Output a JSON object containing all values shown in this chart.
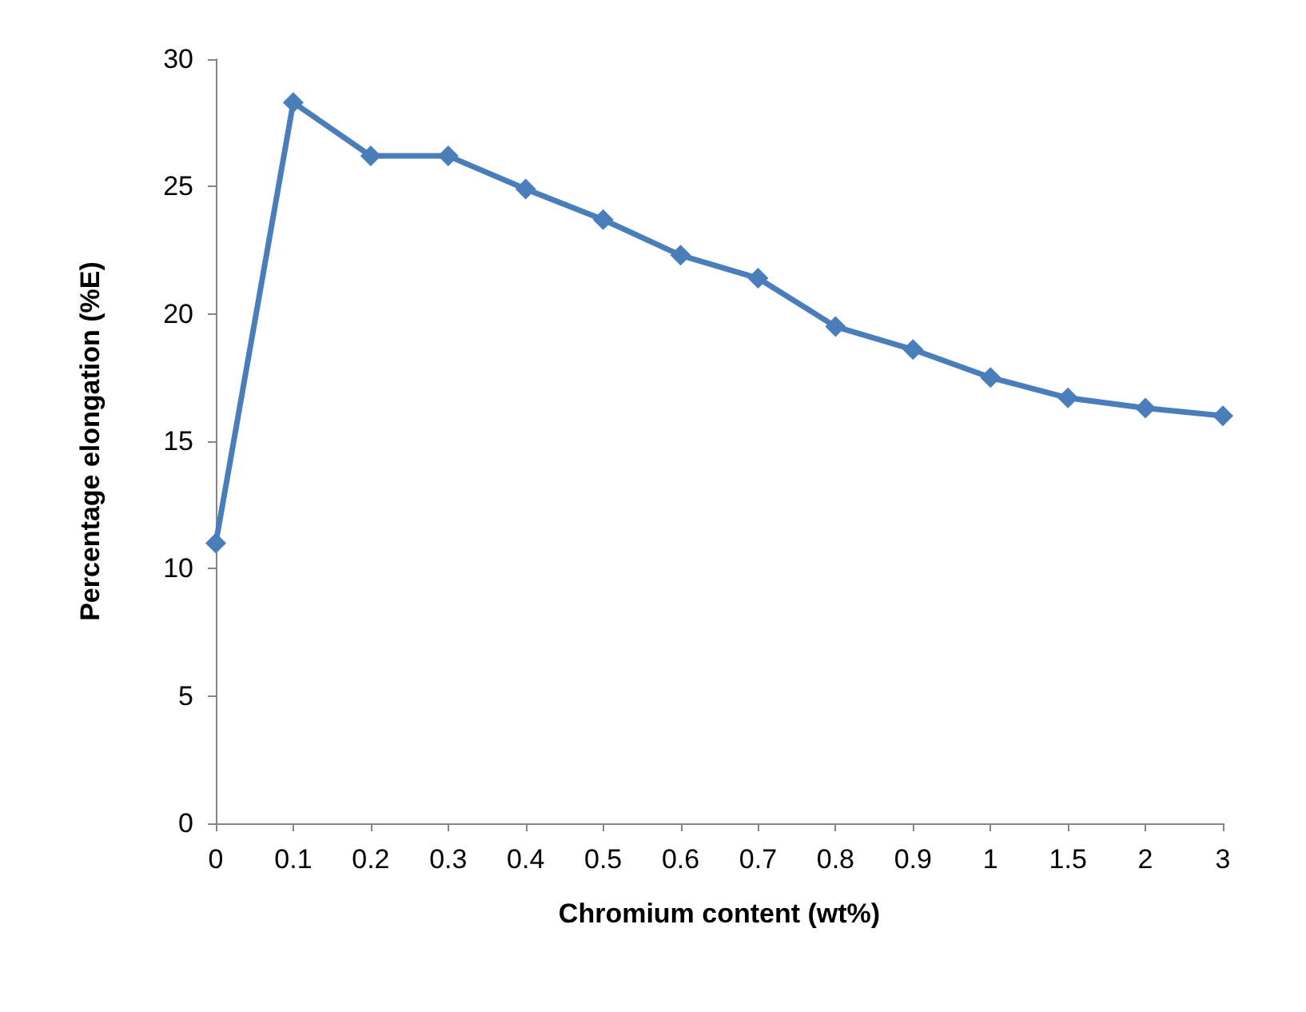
{
  "chart_data": {
    "type": "line",
    "xlabel": "Chromium content (wt%)",
    "ylabel": "Percentage elongation (%E)",
    "categories": [
      "0",
      "0.1",
      "0.2",
      "0.3",
      "0.4",
      "0.5",
      "0.6",
      "0.7",
      "0.8",
      "0.9",
      "1",
      "1.5",
      "2",
      "3"
    ],
    "series": [
      {
        "color": "#4a7ebb",
        "values": [
          11,
          28.3,
          26.2,
          26.2,
          24.9,
          23.7,
          22.3,
          21.4,
          19.5,
          18.6,
          17.5,
          16.7,
          16.3,
          16.0
        ]
      }
    ],
    "ylim": [
      0,
      30
    ],
    "yticks": [
      0,
      5,
      10,
      15,
      20,
      25,
      30
    ],
    "grid": false,
    "marker": "diamond",
    "line_style": "solid"
  }
}
